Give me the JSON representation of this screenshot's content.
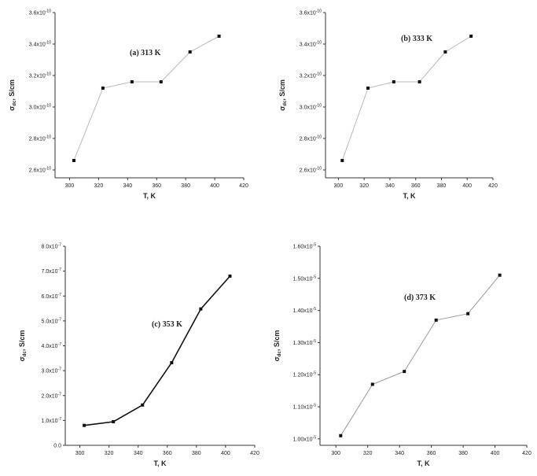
{
  "chart_data": [
    {
      "type": "line",
      "annotation": "(a) 313 K",
      "xlabel": "T, K",
      "ylabel_main": "σ",
      "ylabel_sub": "dc",
      "ylabel_rest": ", S/cm",
      "xlim": [
        290,
        420
      ],
      "xticks": [
        300,
        320,
        340,
        360,
        380,
        400,
        420
      ],
      "ylim": [
        2.55e-10,
        3.6e-10
      ],
      "yticks": [
        2.6e-10,
        2.8e-10,
        3e-10,
        3.2e-10,
        3.4e-10,
        3.6e-10
      ],
      "ytick_labels": [
        {
          "mant": "2.6x10",
          "exp": "-10"
        },
        {
          "mant": "2.8x10",
          "exp": "-10"
        },
        {
          "mant": "3.0x10",
          "exp": "-10"
        },
        {
          "mant": "3.2x10",
          "exp": "-10"
        },
        {
          "mant": "3.4x10",
          "exp": "-10"
        },
        {
          "mant": "3.6x10",
          "exp": "-10"
        }
      ],
      "x": [
        303,
        323,
        343,
        363,
        383,
        403
      ],
      "y": [
        2.66e-10,
        3.12e-10,
        3.16e-10,
        3.16e-10,
        3.35e-10,
        3.45e-10
      ],
      "line_color": "#b8b8b8"
    },
    {
      "type": "line",
      "annotation": "(b) 333 K",
      "xlabel": "T, K",
      "ylabel_main": "σ",
      "ylabel_sub": "dc",
      "ylabel_rest": ", S/cm",
      "xlim": [
        290,
        420
      ],
      "xticks": [
        300,
        320,
        340,
        360,
        380,
        400,
        420
      ],
      "ylim": [
        2.55e-10,
        3.6e-10
      ],
      "yticks": [
        2.6e-10,
        2.8e-10,
        3e-10,
        3.2e-10,
        3.4e-10,
        3.6e-10
      ],
      "ytick_labels": [
        {
          "mant": "2.6x10",
          "exp": "-10"
        },
        {
          "mant": "2.8x10",
          "exp": "-10"
        },
        {
          "mant": "3.0x10",
          "exp": "-10"
        },
        {
          "mant": "3.2x10",
          "exp": "-10"
        },
        {
          "mant": "3.4x10",
          "exp": "-10"
        },
        {
          "mant": "3.6x10",
          "exp": "-10"
        }
      ],
      "x": [
        303,
        323,
        343,
        363,
        383,
        403
      ],
      "y": [
        2.66e-10,
        3.12e-10,
        3.16e-10,
        3.16e-10,
        3.35e-10,
        3.45e-10
      ],
      "line_color": "#b8b8b8"
    },
    {
      "type": "line",
      "annotation": "(c) 353 K",
      "xlabel": "T, K",
      "ylabel_main": "σ",
      "ylabel_sub": "dc",
      "ylabel_rest": ", S/cm",
      "xlim": [
        290,
        420
      ],
      "xticks": [
        300,
        320,
        340,
        360,
        380,
        400,
        420
      ],
      "ylim": [
        0,
        8e-07
      ],
      "yticks": [
        0,
        1e-07,
        2e-07,
        3e-07,
        4e-07,
        5e-07,
        6e-07,
        7e-07,
        8e-07
      ],
      "ytick_labels": [
        {
          "mant": "0.0",
          "exp": ""
        },
        {
          "mant": "1.0x10",
          "exp": "-7"
        },
        {
          "mant": "2.0x10",
          "exp": "-7"
        },
        {
          "mant": "3.0x10",
          "exp": "-7"
        },
        {
          "mant": "4.0x10",
          "exp": "-7"
        },
        {
          "mant": "5.0x10",
          "exp": "-7"
        },
        {
          "mant": "6.0x10",
          "exp": "-7"
        },
        {
          "mant": "7.0x10",
          "exp": "-7"
        },
        {
          "mant": "8.0x10",
          "exp": "-7"
        }
      ],
      "x": [
        303,
        323,
        343,
        363,
        383,
        403
      ],
      "y": [
        8e-08,
        9.5e-08,
        1.62e-07,
        3.32e-07,
        5.48e-07,
        6.8e-07
      ],
      "line_color": "#111111"
    },
    {
      "type": "line",
      "annotation": "(d) 373 K",
      "xlabel": "T, K",
      "ylabel_main": "σ",
      "ylabel_sub": "dc",
      "ylabel_rest": ", S/cm",
      "xlim": [
        290,
        420
      ],
      "xticks": [
        300,
        320,
        340,
        360,
        380,
        400,
        420
      ],
      "ylim": [
        9.8e-06,
        1.6e-05
      ],
      "yticks": [
        1e-05,
        1.1e-05,
        1.2e-05,
        1.3e-05,
        1.4e-05,
        1.5e-05,
        1.6e-05
      ],
      "ytick_labels": [
        {
          "mant": "1.00x10",
          "exp": "-5"
        },
        {
          "mant": "1.10x10",
          "exp": "-5"
        },
        {
          "mant": "1.20x10",
          "exp": "-5"
        },
        {
          "mant": "1.30x10",
          "exp": "-5"
        },
        {
          "mant": "1.40x10",
          "exp": "-5"
        },
        {
          "mant": "1.50x10",
          "exp": "-5"
        },
        {
          "mant": "1.60x10",
          "exp": "-5"
        }
      ],
      "x": [
        303,
        323,
        343,
        363,
        383,
        403
      ],
      "y": [
        1.01e-05,
        1.17e-05,
        1.21e-05,
        1.37e-05,
        1.39e-05,
        1.51e-05
      ],
      "line_color": "#999999"
    }
  ]
}
